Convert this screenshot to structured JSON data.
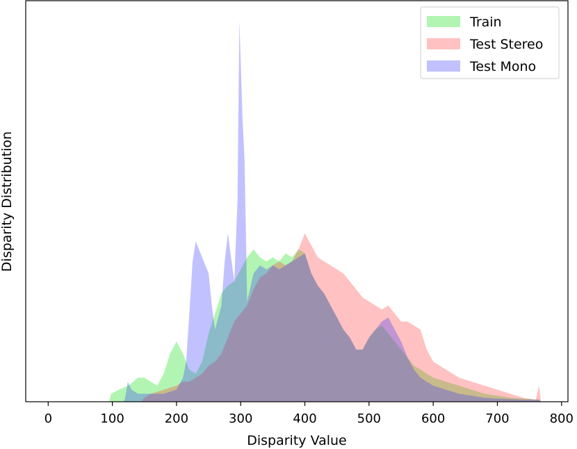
{
  "chart_data": {
    "type": "area",
    "title": "",
    "xlabel": "Disparity Value",
    "ylabel": "Disparity Distribution",
    "xlim": [
      -35,
      810
    ],
    "ylim": [
      0,
      1.0
    ],
    "x_ticks": [
      0,
      100,
      200,
      300,
      400,
      500,
      600,
      700,
      800
    ],
    "x_tick_labels": [
      "0",
      "100",
      "200",
      "300",
      "400",
      "500",
      "600",
      "700",
      "800"
    ],
    "y_ticks_shown": false,
    "grid": false,
    "legend": {
      "placement": "top-right",
      "entries": [
        "Train",
        "Test Stereo",
        "Test Mono"
      ]
    },
    "series": [
      {
        "name": "Train",
        "color": "#00dd00",
        "opacity": 0.3,
        "points": [
          [
            95,
            0
          ],
          [
            98,
            0.02
          ],
          [
            110,
            0.03
          ],
          [
            125,
            0.04
          ],
          [
            140,
            0.06
          ],
          [
            150,
            0.06
          ],
          [
            160,
            0.05
          ],
          [
            170,
            0.04
          ],
          [
            180,
            0.07
          ],
          [
            190,
            0.12
          ],
          [
            200,
            0.15
          ],
          [
            210,
            0.12
          ],
          [
            220,
            0.08
          ],
          [
            230,
            0.07
          ],
          [
            240,
            0.1
          ],
          [
            250,
            0.17
          ],
          [
            260,
            0.22
          ],
          [
            270,
            0.27
          ],
          [
            280,
            0.29
          ],
          [
            290,
            0.3
          ],
          [
            300,
            0.33
          ],
          [
            310,
            0.36
          ],
          [
            320,
            0.38
          ],
          [
            330,
            0.36
          ],
          [
            340,
            0.35
          ],
          [
            350,
            0.36
          ],
          [
            360,
            0.35
          ],
          [
            370,
            0.37
          ],
          [
            380,
            0.36
          ],
          [
            390,
            0.38
          ],
          [
            400,
            0.37
          ],
          [
            410,
            0.32
          ],
          [
            420,
            0.29
          ],
          [
            430,
            0.27
          ],
          [
            440,
            0.24
          ],
          [
            450,
            0.21
          ],
          [
            460,
            0.18
          ],
          [
            470,
            0.16
          ],
          [
            480,
            0.13
          ],
          [
            490,
            0.13
          ],
          [
            500,
            0.16
          ],
          [
            510,
            0.18
          ],
          [
            520,
            0.19
          ],
          [
            530,
            0.17
          ],
          [
            540,
            0.15
          ],
          [
            550,
            0.13
          ],
          [
            560,
            0.11
          ],
          [
            570,
            0.09
          ],
          [
            580,
            0.08
          ],
          [
            590,
            0.07
          ],
          [
            600,
            0.06
          ],
          [
            620,
            0.05
          ],
          [
            640,
            0.04
          ],
          [
            660,
            0.03
          ],
          [
            680,
            0.02
          ],
          [
            700,
            0.015
          ],
          [
            720,
            0.01
          ],
          [
            740,
            0.008
          ],
          [
            765,
            0.005
          ],
          [
            768,
            0
          ]
        ]
      },
      {
        "name": "Test Stereo",
        "color": "#ff3333",
        "opacity": 0.3,
        "points": [
          [
            145,
            0
          ],
          [
            150,
            0.01
          ],
          [
            160,
            0.02
          ],
          [
            180,
            0.03
          ],
          [
            190,
            0.035
          ],
          [
            200,
            0.04
          ],
          [
            210,
            0.05
          ],
          [
            220,
            0.05
          ],
          [
            230,
            0.06
          ],
          [
            240,
            0.07
          ],
          [
            250,
            0.09
          ],
          [
            260,
            0.1
          ],
          [
            270,
            0.12
          ],
          [
            280,
            0.16
          ],
          [
            290,
            0.2
          ],
          [
            300,
            0.22
          ],
          [
            310,
            0.24
          ],
          [
            320,
            0.28
          ],
          [
            330,
            0.31
          ],
          [
            340,
            0.32
          ],
          [
            350,
            0.34
          ],
          [
            360,
            0.35
          ],
          [
            370,
            0.34
          ],
          [
            380,
            0.35
          ],
          [
            390,
            0.38
          ],
          [
            400,
            0.42
          ],
          [
            410,
            0.39
          ],
          [
            420,
            0.36
          ],
          [
            430,
            0.35
          ],
          [
            440,
            0.34
          ],
          [
            450,
            0.33
          ],
          [
            460,
            0.32
          ],
          [
            470,
            0.3
          ],
          [
            480,
            0.28
          ],
          [
            490,
            0.26
          ],
          [
            500,
            0.25
          ],
          [
            510,
            0.24
          ],
          [
            520,
            0.23
          ],
          [
            530,
            0.24
          ],
          [
            540,
            0.22
          ],
          [
            550,
            0.2
          ],
          [
            560,
            0.2
          ],
          [
            570,
            0.19
          ],
          [
            580,
            0.18
          ],
          [
            590,
            0.13
          ],
          [
            600,
            0.1
          ],
          [
            610,
            0.09
          ],
          [
            620,
            0.08
          ],
          [
            640,
            0.06
          ],
          [
            660,
            0.05
          ],
          [
            680,
            0.04
          ],
          [
            700,
            0.03
          ],
          [
            720,
            0.02
          ],
          [
            740,
            0.01
          ],
          [
            760,
            0.005
          ],
          [
            765,
            0.04
          ],
          [
            768,
            0
          ]
        ]
      },
      {
        "name": "Test Mono",
        "color": "#3333ff",
        "opacity": 0.3,
        "points": [
          [
            118,
            0
          ],
          [
            120,
            0.01
          ],
          [
            124,
            0.05
          ],
          [
            130,
            0.03
          ],
          [
            140,
            0.02
          ],
          [
            160,
            0.02
          ],
          [
            180,
            0.02
          ],
          [
            200,
            0.03
          ],
          [
            210,
            0.06
          ],
          [
            215,
            0.1
          ],
          [
            220,
            0.22
          ],
          [
            225,
            0.35
          ],
          [
            230,
            0.4
          ],
          [
            240,
            0.36
          ],
          [
            250,
            0.32
          ],
          [
            255,
            0.24
          ],
          [
            260,
            0.18
          ],
          [
            270,
            0.24
          ],
          [
            275,
            0.35
          ],
          [
            280,
            0.42
          ],
          [
            285,
            0.36
          ],
          [
            290,
            0.3
          ],
          [
            295,
            0.5
          ],
          [
            298,
            0.95
          ],
          [
            300,
            0.85
          ],
          [
            303,
            0.7
          ],
          [
            306,
            0.6
          ],
          [
            310,
            0.25
          ],
          [
            320,
            0.32
          ],
          [
            330,
            0.34
          ],
          [
            340,
            0.33
          ],
          [
            350,
            0.34
          ],
          [
            360,
            0.33
          ],
          [
            370,
            0.34
          ],
          [
            380,
            0.35
          ],
          [
            390,
            0.36
          ],
          [
            400,
            0.37
          ],
          [
            410,
            0.32
          ],
          [
            420,
            0.29
          ],
          [
            430,
            0.27
          ],
          [
            440,
            0.24
          ],
          [
            450,
            0.21
          ],
          [
            460,
            0.18
          ],
          [
            470,
            0.16
          ],
          [
            480,
            0.13
          ],
          [
            490,
            0.13
          ],
          [
            500,
            0.16
          ],
          [
            510,
            0.18
          ],
          [
            520,
            0.2
          ],
          [
            530,
            0.21
          ],
          [
            540,
            0.18
          ],
          [
            550,
            0.15
          ],
          [
            560,
            0.11
          ],
          [
            570,
            0.08
          ],
          [
            580,
            0.06
          ],
          [
            590,
            0.05
          ],
          [
            600,
            0.04
          ],
          [
            620,
            0.03
          ],
          [
            640,
            0.02
          ],
          [
            660,
            0.015
          ],
          [
            680,
            0.01
          ],
          [
            700,
            0.008
          ],
          [
            740,
            0.005
          ],
          [
            765,
            0.005
          ],
          [
            768,
            0
          ]
        ]
      }
    ]
  }
}
